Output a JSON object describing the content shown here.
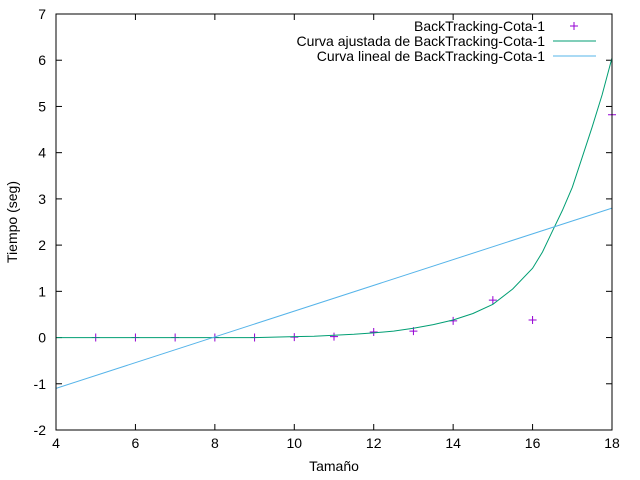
{
  "chart_data": {
    "type": "scatter",
    "xlabel": "Tamaño",
    "ylabel": "Tiempo (seg)",
    "xlim": [
      4,
      18
    ],
    "ylim": [
      -2,
      7
    ],
    "x_ticks": [
      4,
      6,
      8,
      10,
      12,
      14,
      16,
      18
    ],
    "y_ticks": [
      -2,
      -1,
      0,
      1,
      2,
      3,
      4,
      5,
      6,
      7
    ],
    "legend_position": "top-right",
    "series": [
      {
        "name": "BackTracking-Cota-1",
        "style": "points",
        "color": "#9400d3",
        "x": [
          5,
          6,
          7,
          8,
          9,
          10,
          11,
          12,
          13,
          14,
          15,
          16,
          18
        ],
        "y": [
          0.0,
          0.0,
          0.0,
          0.0,
          0.0,
          0.01,
          0.02,
          0.12,
          0.14,
          0.36,
          0.81,
          0.38,
          4.82
        ]
      },
      {
        "name": "Curva ajustada de BackTracking-Cota-1",
        "style": "line",
        "color": "#009e73",
        "x": [
          4,
          5,
          6,
          7,
          8,
          9,
          10,
          10.5,
          11,
          11.5,
          12,
          12.5,
          13,
          13.5,
          14,
          14.5,
          15,
          15.5,
          16,
          16.25,
          16.5,
          16.75,
          17,
          17.25,
          17.5,
          17.75,
          18
        ],
        "y": [
          0.0,
          0.0,
          0.0,
          0.0,
          0.0,
          0.0,
          0.02,
          0.03,
          0.05,
          0.07,
          0.1,
          0.14,
          0.2,
          0.28,
          0.38,
          0.52,
          0.72,
          1.05,
          1.5,
          1.85,
          2.3,
          2.75,
          3.25,
          3.9,
          4.55,
          5.25,
          6.05
        ]
      },
      {
        "name": "Curva lineal de BackTracking-Cota-1",
        "style": "line",
        "color": "#56b4e9",
        "x": [
          4,
          18
        ],
        "y": [
          -1.1,
          2.8
        ]
      }
    ]
  }
}
